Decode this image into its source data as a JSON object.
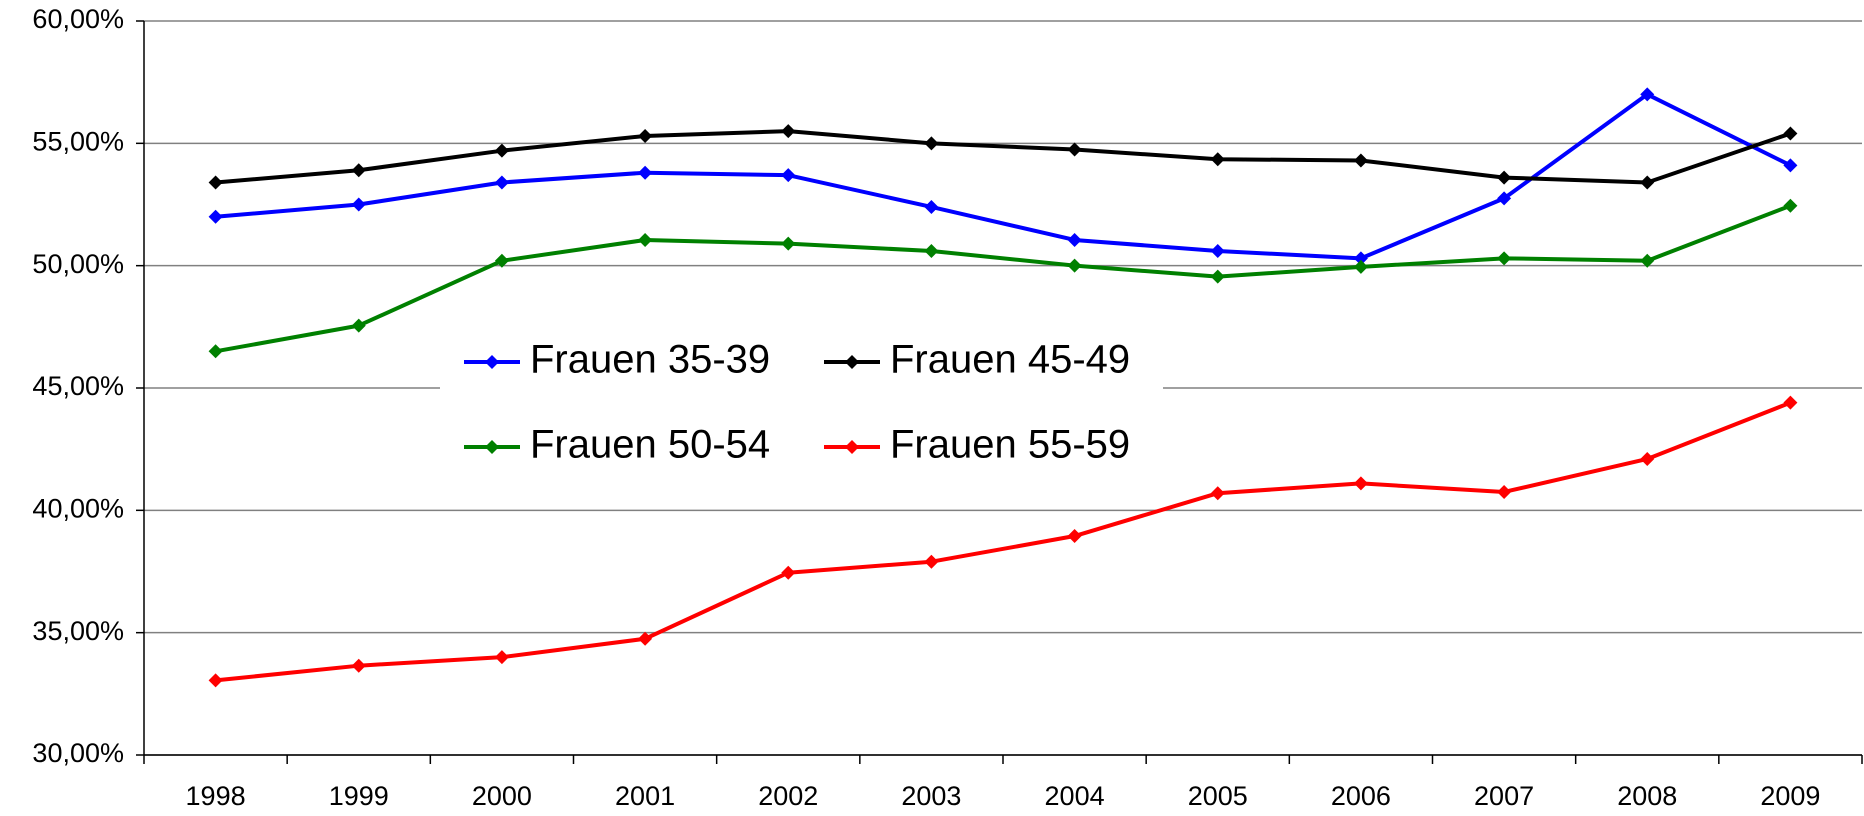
{
  "chart_data": {
    "type": "line",
    "categories": [
      "1998",
      "1999",
      "2000",
      "2001",
      "2002",
      "2003",
      "2004",
      "2005",
      "2006",
      "2007",
      "2008",
      "2009"
    ],
    "series": [
      {
        "name": "Frauen 35-39",
        "color": "#0000ff",
        "values": [
          52.0,
          52.5,
          53.4,
          53.8,
          53.7,
          52.4,
          51.05,
          50.6,
          50.3,
          52.75,
          57.0,
          54.1
        ]
      },
      {
        "name": "Frauen 45-49",
        "color": "#000000",
        "values": [
          53.4,
          53.9,
          54.7,
          55.3,
          55.5,
          55.0,
          54.75,
          54.35,
          54.3,
          53.6,
          53.4,
          55.4
        ]
      },
      {
        "name": "Frauen 50-54",
        "color": "#008000",
        "values": [
          46.5,
          47.55,
          50.2,
          51.05,
          50.9,
          50.6,
          50.0,
          49.55,
          49.95,
          50.3,
          50.2,
          52.45
        ]
      },
      {
        "name": "Frauen 55-59",
        "color": "#ff0000",
        "values": [
          33.05,
          33.65,
          34.0,
          34.75,
          37.45,
          37.9,
          38.95,
          40.7,
          41.1,
          40.75,
          42.1,
          44.4
        ]
      }
    ],
    "ylim": [
      30,
      60
    ],
    "yticks": [
      {
        "value": 30,
        "label": "30,00%"
      },
      {
        "value": 35,
        "label": "35,00%"
      },
      {
        "value": 40,
        "label": "40,00%"
      },
      {
        "value": 45,
        "label": "45,00%"
      },
      {
        "value": 50,
        "label": "50,00%"
      },
      {
        "value": 55,
        "label": "55,00%"
      },
      {
        "value": 60,
        "label": "60,00%"
      }
    ],
    "grid": true
  }
}
